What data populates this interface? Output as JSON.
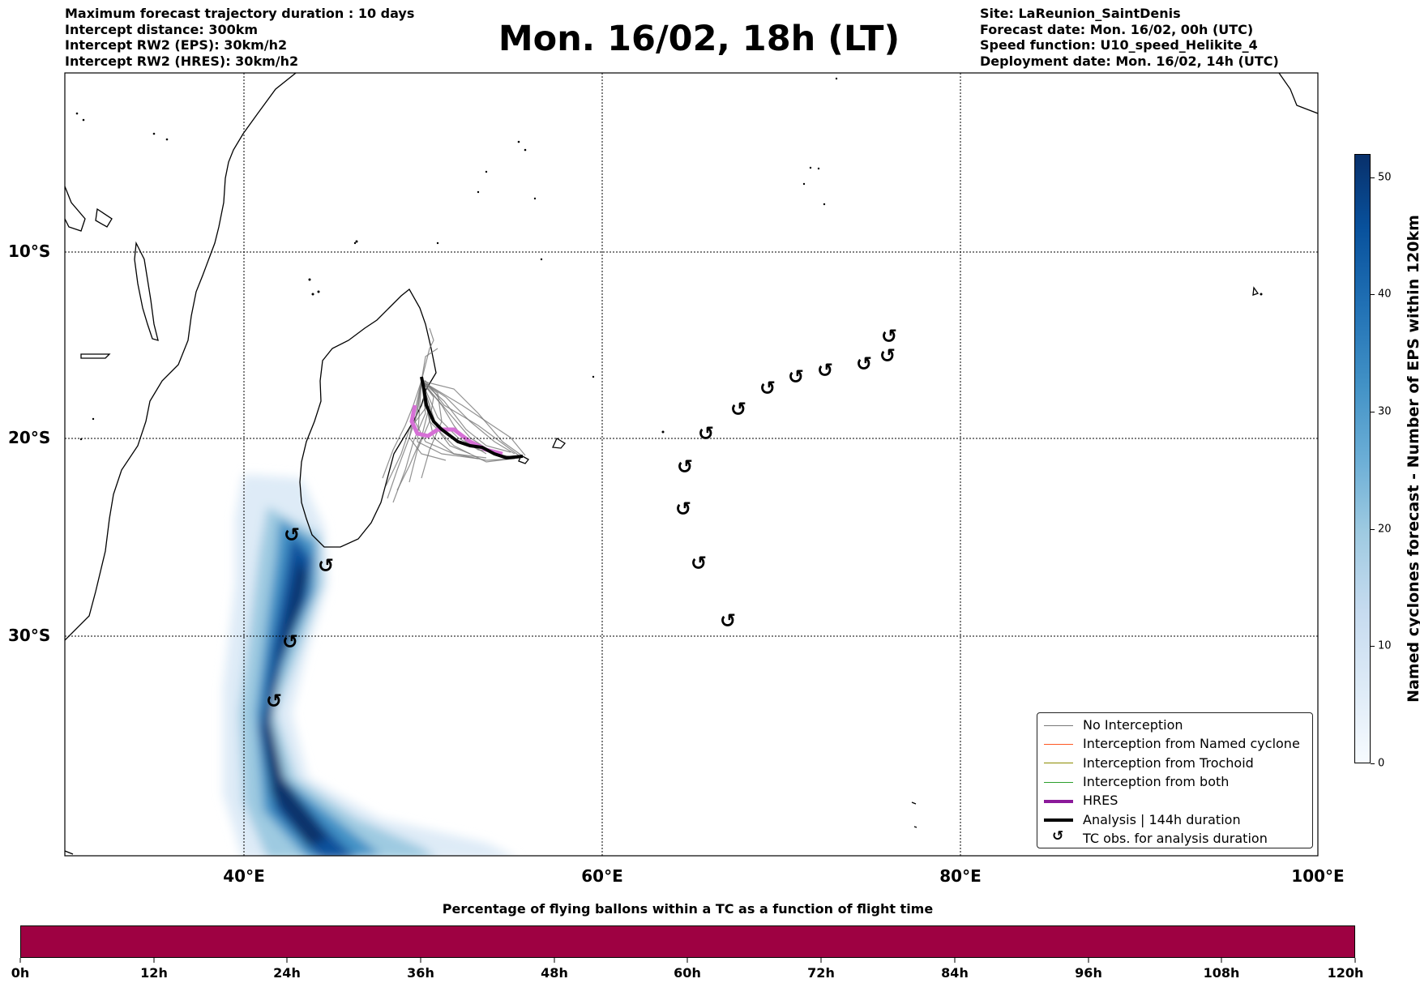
{
  "header": {
    "left_lines": [
      "Maximum forecast trajectory duration : 10 days",
      "Intercept distance: 300km",
      "Intercept RW2 (EPS):  30km/h2",
      "Intercept RW2 (HRES): 30km/h2"
    ],
    "title": "Mon. 16/02, 18h (LT)",
    "right_lines": [
      "Site: LaReunion_SaintDenis",
      "Forecast date: Mon. 16/02, 00h (UTC)",
      "Speed function: U10_speed_Helikite_4",
      "Deployment date: Mon. 16/02, 14h (UTC)"
    ]
  },
  "map": {
    "lat_labels": [
      "10°S",
      "20°S",
      "30°S"
    ],
    "lon_labels": [
      "40°E",
      "60°E",
      "80°E",
      "100°E"
    ],
    "tc_symbol": "↺"
  },
  "legend": {
    "items": [
      {
        "label": "No Interception",
        "color": "#777777",
        "kind": "line-thin"
      },
      {
        "label": "Interception from Named cyclone",
        "color": "#ff5722",
        "kind": "line-thin"
      },
      {
        "label": "Interception from Trochoid",
        "color": "#8b8b00",
        "kind": "line-thin"
      },
      {
        "label": "Interception from both",
        "color": "#2ca02c",
        "kind": "line-thin"
      },
      {
        "label": "HRES",
        "color": "#8b1a9a",
        "kind": "line-thick"
      },
      {
        "label": "Analysis | 144h duration",
        "color": "#000000",
        "kind": "line-thick"
      },
      {
        "label": "TC obs. for analysis duration",
        "color": "#000000",
        "kind": "glyph"
      }
    ]
  },
  "colorbar_vertical": {
    "label": "Named cyclones forecast - Number of EPS within 120km",
    "ticks": [
      "0",
      "10",
      "20",
      "30",
      "40",
      "50"
    ],
    "max_value": 52,
    "colors": [
      "#f7fbff",
      "#08306b"
    ]
  },
  "colorbar_horizontal": {
    "title": "Percentage of flying ballons within a TC as a function of flight time",
    "ticks": [
      "0h",
      "12h",
      "24h",
      "36h",
      "48h",
      "60h",
      "72h",
      "84h",
      "96h",
      "108h",
      "120h"
    ],
    "color": "#9e0142"
  }
}
